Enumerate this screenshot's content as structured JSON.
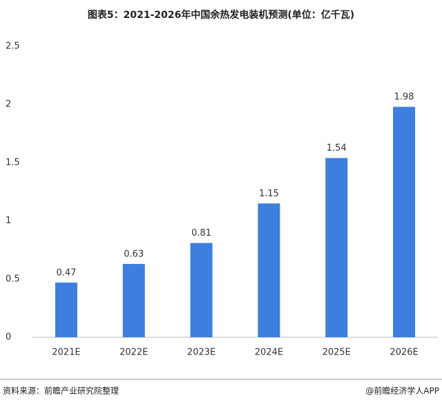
{
  "chart_data": {
    "type": "bar",
    "title": "图表5：2021-2026年中国余热发电装机预测(单位：亿千瓦)",
    "categories": [
      "2021E",
      "2022E",
      "2023E",
      "2024E",
      "2025E",
      "2026E"
    ],
    "values": [
      0.47,
      0.63,
      0.81,
      1.15,
      1.54,
      1.98
    ],
    "color": "#3d7ede",
    "ylim": [
      0,
      2.5
    ],
    "yticks": [
      0,
      0.5,
      1,
      1.5,
      2,
      2.5
    ],
    "grid": false
  },
  "footer": {
    "source": "资料来源：前瞻产业研究院整理",
    "credit": "@前瞻经济学人APP"
  }
}
